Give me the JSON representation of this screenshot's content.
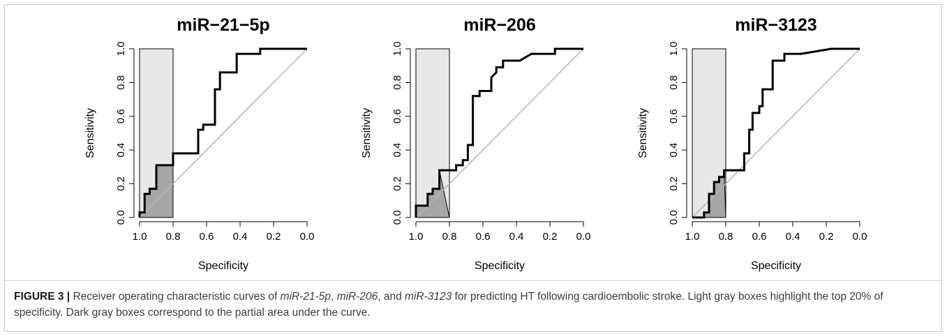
{
  "chart_data": [
    {
      "type": "line",
      "title": "miR−21−5p",
      "xlabel": "Specificity",
      "ylabel": "Sensitivity",
      "xlim": [
        1.0,
        0.0
      ],
      "ylim": [
        0.0,
        1.0
      ],
      "xticks": [
        "1.0",
        "0.8",
        "0.6",
        "0.4",
        "0.2",
        "0.0"
      ],
      "yticks": [
        "0.0",
        "0.2",
        "0.4",
        "0.6",
        "0.8",
        "1.0"
      ],
      "highlight_specificity": [
        1.0,
        0.8
      ],
      "grid": false,
      "series": [
        {
          "x": [
            1.0,
            1.0,
            0.97,
            0.97,
            0.94,
            0.94,
            0.9,
            0.9,
            0.8,
            0.8,
            0.65,
            0.65,
            0.62,
            0.62,
            0.55,
            0.55,
            0.52,
            0.52,
            0.42,
            0.42,
            0.28,
            0.28,
            0.0
          ],
          "y": [
            0.0,
            0.03,
            0.03,
            0.14,
            0.14,
            0.17,
            0.17,
            0.31,
            0.31,
            0.38,
            0.38,
            0.52,
            0.52,
            0.55,
            0.55,
            0.76,
            0.76,
            0.86,
            0.86,
            0.97,
            0.97,
            1.0,
            1.0
          ]
        },
        {
          "x": [
            1.0,
            0.0
          ],
          "y": [
            0.0,
            1.0
          ]
        }
      ]
    },
    {
      "type": "line",
      "title": "miR−206",
      "xlabel": "Specificity",
      "ylabel": "Sensitivity",
      "xlim": [
        1.0,
        0.0
      ],
      "ylim": [
        0.0,
        1.0
      ],
      "xticks": [
        "1.0",
        "0.8",
        "0.6",
        "0.4",
        "0.2",
        "0.0"
      ],
      "yticks": [
        "0.0",
        "0.2",
        "0.4",
        "0.6",
        "0.8",
        "1.0"
      ],
      "highlight_specificity": [
        1.0,
        0.8
      ],
      "grid": false,
      "series": [
        {
          "x": [
            1.0,
            1.0,
            0.93,
            0.93,
            0.9,
            0.9,
            0.86,
            0.86,
            0.76,
            0.76,
            0.72,
            0.72,
            0.69,
            0.69,
            0.66,
            0.66,
            0.62,
            0.62,
            0.55,
            0.55,
            0.52,
            0.52,
            0.48,
            0.48,
            0.38,
            0.31,
            0.17,
            0.17,
            0.0
          ],
          "y": [
            0.0,
            0.07,
            0.07,
            0.14,
            0.14,
            0.17,
            0.17,
            0.28,
            0.28,
            0.31,
            0.31,
            0.34,
            0.34,
            0.43,
            0.43,
            0.72,
            0.72,
            0.75,
            0.75,
            0.83,
            0.86,
            0.89,
            0.89,
            0.93,
            0.93,
            0.97,
            0.97,
            1.0,
            1.0
          ]
        },
        {
          "x": [
            1.0,
            0.0
          ],
          "y": [
            0.0,
            1.0
          ]
        }
      ]
    },
    {
      "type": "line",
      "title": "miR−3123",
      "xlabel": "Specificity",
      "ylabel": "Sensitivity",
      "xlim": [
        1.0,
        0.0
      ],
      "ylim": [
        0.0,
        1.0
      ],
      "xticks": [
        "1.0",
        "0.8",
        "0.6",
        "0.4",
        "0.2",
        "0.0"
      ],
      "yticks": [
        "0.0",
        "0.2",
        "0.4",
        "0.6",
        "0.8",
        "1.0"
      ],
      "highlight_specificity": [
        1.0,
        0.8
      ],
      "grid": false,
      "series": [
        {
          "x": [
            1.0,
            0.93,
            0.93,
            0.9,
            0.9,
            0.87,
            0.87,
            0.84,
            0.84,
            0.81,
            0.81,
            0.78,
            0.78,
            0.69,
            0.69,
            0.66,
            0.66,
            0.64,
            0.64,
            0.6,
            0.6,
            0.58,
            0.58,
            0.52,
            0.52,
            0.45,
            0.45,
            0.35,
            0.17,
            0.0
          ],
          "y": [
            0.0,
            0.0,
            0.03,
            0.03,
            0.14,
            0.14,
            0.21,
            0.21,
            0.24,
            0.24,
            0.28,
            0.28,
            0.28,
            0.28,
            0.38,
            0.38,
            0.52,
            0.52,
            0.62,
            0.62,
            0.66,
            0.66,
            0.76,
            0.76,
            0.93,
            0.93,
            0.97,
            0.97,
            1.0,
            1.0
          ]
        },
        {
          "x": [
            1.0,
            0.0
          ],
          "y": [
            0.0,
            1.0
          ]
        }
      ]
    }
  ],
  "caption": {
    "figure_label": "FIGURE 3 |",
    "text_1": " Receiver operating characteristic curves of ",
    "gene_1": "miR-21-5p",
    "text_2": ", ",
    "gene_2": "miR-206",
    "text_3": ", and ",
    "gene_3": "miR-3123",
    "text_4": " for predicting HT following cardioembolic stroke. Light gray boxes highlight the top 20% of specificity. Dark gray boxes correspond to the partial area under the curve."
  },
  "colors": {
    "curve": "#000000",
    "diagonal": "#b4b4b4",
    "light_box": "#e8e8e8",
    "dark_box": "#a6a6a6",
    "caption_text": "#3c3c3c"
  }
}
